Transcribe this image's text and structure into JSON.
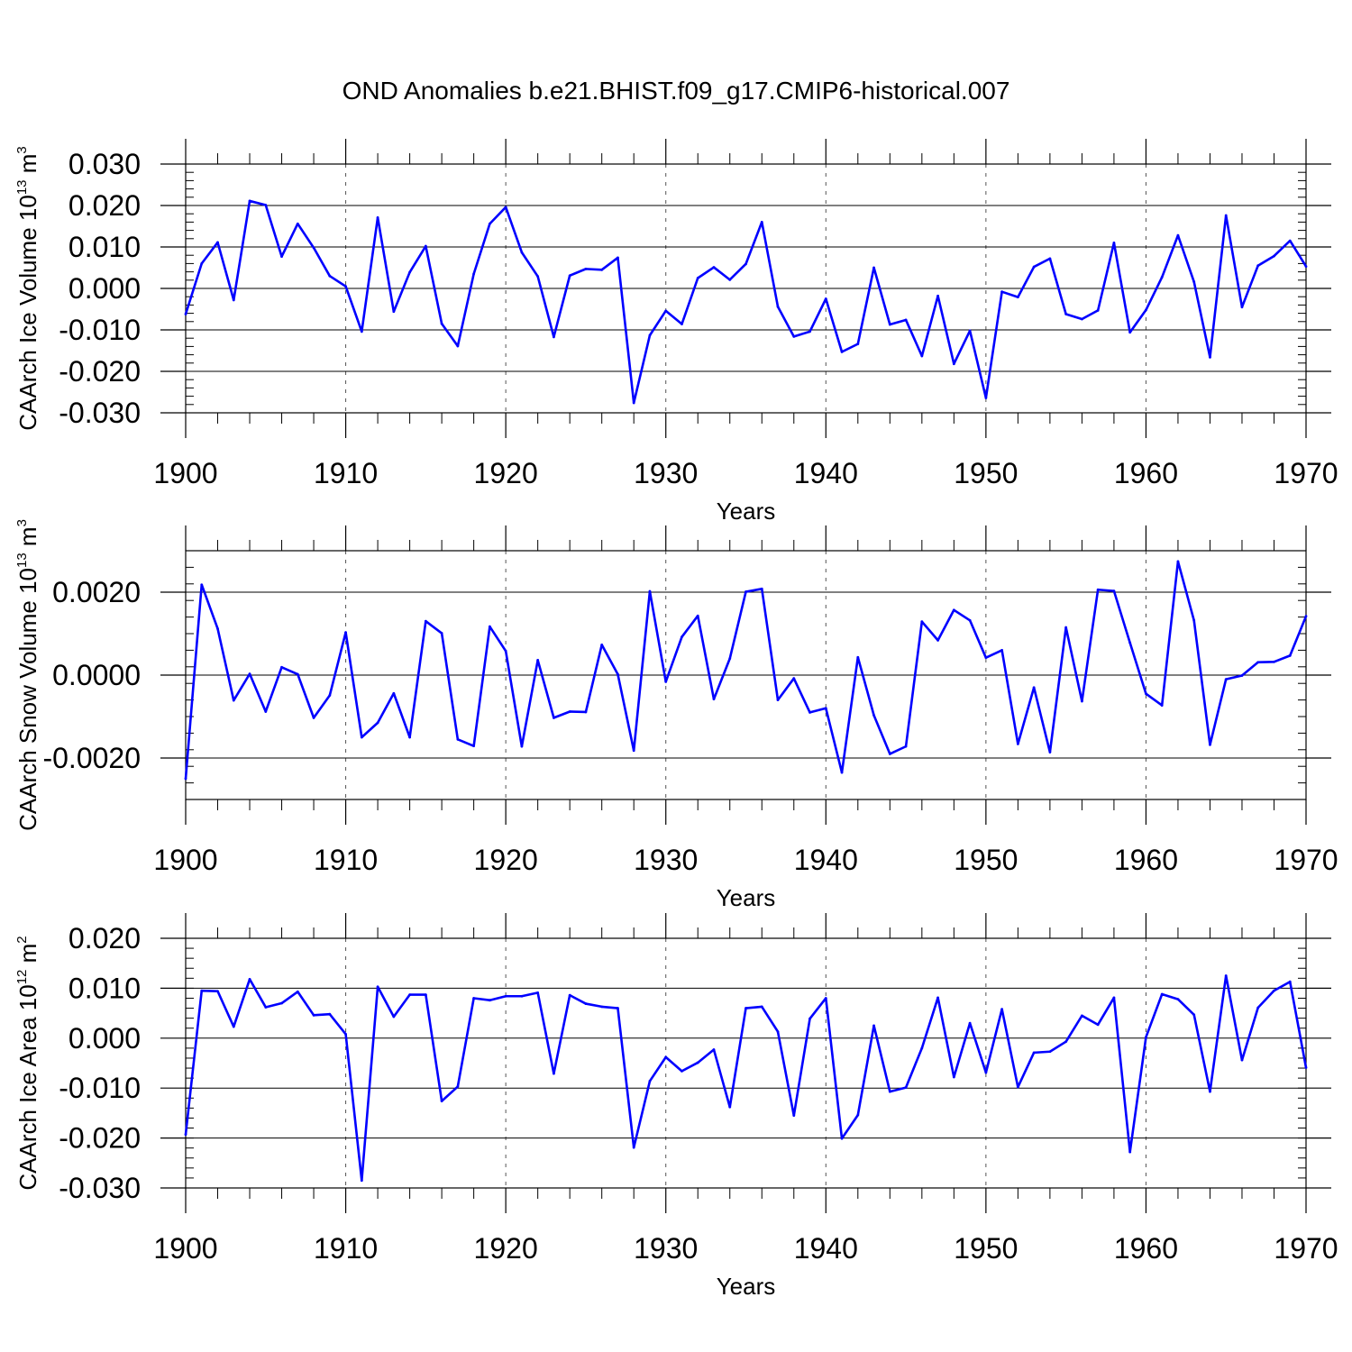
{
  "title": "OND Anomalies b.e21.BHIST.f09_g17.CMIP6-historical.007",
  "colors": {
    "series": "#0000ff",
    "axis": "#000000",
    "grid": "#555555"
  },
  "chart_data": [
    {
      "type": "line",
      "ylabel_main": "CAArch Ice Volume 10",
      "ylabel_exp": "13",
      "ylabel_unit": " m",
      "ylabel_unit_exp": "3",
      "xlabel": "Years",
      "xlim": [
        1900,
        1970
      ],
      "ylim": [
        -0.03,
        0.03
      ],
      "yticks": [
        -0.03,
        -0.02,
        -0.01,
        0.0,
        0.01,
        0.02,
        0.03
      ],
      "ytick_labels": [
        "-0.030",
        "-0.020",
        "-0.010",
        "0.000",
        "0.010",
        "0.020",
        "0.030"
      ],
      "xticks": [
        1900,
        1910,
        1920,
        1930,
        1940,
        1950,
        1960,
        1970
      ],
      "xtick_labels": [
        "1900",
        "1910",
        "1920",
        "1930",
        "1940",
        "1950",
        "1960",
        "1970"
      ],
      "x_start": 1900,
      "values": [
        -0.0062,
        0.006,
        0.0111,
        -0.0028,
        0.0211,
        0.0201,
        0.0077,
        0.0156,
        0.0098,
        0.003,
        0.0005,
        -0.0104,
        0.0171,
        -0.0056,
        0.0039,
        0.0102,
        -0.0085,
        -0.0139,
        0.0035,
        0.0156,
        0.0196,
        0.0087,
        0.0029,
        -0.0117,
        0.0031,
        0.0047,
        0.0045,
        0.0074,
        -0.0276,
        -0.0113,
        -0.0054,
        -0.0086,
        0.0025,
        0.0051,
        0.0021,
        0.0059,
        0.016,
        -0.0044,
        -0.0116,
        -0.0104,
        -0.0025,
        -0.0153,
        -0.0134,
        0.005,
        -0.0087,
        -0.0076,
        -0.0163,
        -0.0018,
        -0.0182,
        -0.0102,
        -0.0264,
        -0.0008,
        -0.0021,
        0.0052,
        0.0072,
        -0.0062,
        -0.0074,
        -0.0053,
        0.011,
        -0.0106,
        -0.0052,
        0.0027,
        0.0128,
        0.0016,
        -0.0166,
        0.0176,
        -0.0045,
        0.0055,
        0.0078,
        0.0115,
        0.0053
      ]
    },
    {
      "type": "line",
      "ylabel_main": "CAArch Snow Volume 10",
      "ylabel_exp": "13",
      "ylabel_unit": " m",
      "ylabel_unit_exp": "3",
      "xlabel": "Years",
      "xlim": [
        1900,
        1970
      ],
      "ylim": [
        -0.003,
        0.003
      ],
      "yticks": [
        -0.002,
        0.0,
        0.002
      ],
      "ytick_labels": [
        "-0.0020",
        "0.0000",
        "0.0020"
      ],
      "xticks": [
        1900,
        1910,
        1920,
        1930,
        1940,
        1950,
        1960,
        1970
      ],
      "xtick_labels": [
        "1900",
        "1910",
        "1920",
        "1930",
        "1940",
        "1950",
        "1960",
        "1970"
      ],
      "x_start": 1900,
      "values": [
        -0.0025,
        0.00218,
        0.00112,
        -0.00061,
        3e-05,
        -0.00088,
        0.00019,
        2e-05,
        -0.00103,
        -0.00049,
        0.00103,
        -0.0015,
        -0.00115,
        -0.00044,
        -0.0015,
        0.0013,
        0.00101,
        -0.00155,
        -0.00171,
        0.00117,
        0.00058,
        -0.00172,
        0.00036,
        -0.00103,
        -0.00088,
        -0.00089,
        0.00073,
        2e-05,
        -0.00182,
        0.00202,
        -0.00016,
        0.00092,
        0.00143,
        -0.00058,
        0.0004,
        0.00201,
        0.00208,
        -0.0006,
        -8e-05,
        -0.0009,
        -0.0008,
        -0.00235,
        0.00043,
        -0.00097,
        -0.0019,
        -0.00172,
        0.00129,
        0.00084,
        0.00157,
        0.00132,
        0.00042,
        0.0006,
        -0.00166,
        -0.0003,
        -0.00186,
        0.00115,
        -0.00063,
        0.00206,
        0.00203,
        0.00078,
        -0.00045,
        -0.00073,
        0.00274,
        0.00132,
        -0.00168,
        -0.0001,
        -1e-05,
        0.00031,
        0.00032,
        0.00047,
        0.00142
      ]
    },
    {
      "type": "line",
      "ylabel_main": "CAArch Ice Area 10",
      "ylabel_exp": "12",
      "ylabel_unit": " m",
      "ylabel_unit_exp": "2",
      "xlabel": "Years",
      "xlim": [
        1900,
        1970
      ],
      "ylim": [
        -0.03,
        0.02
      ],
      "yticks": [
        -0.03,
        -0.02,
        -0.01,
        0.0,
        0.01,
        0.02
      ],
      "ytick_labels": [
        "-0.030",
        "-0.020",
        "-0.010",
        "0.000",
        "0.010",
        "0.020"
      ],
      "xticks": [
        1900,
        1910,
        1920,
        1930,
        1940,
        1950,
        1960,
        1970
      ],
      "xtick_labels": [
        "1900",
        "1910",
        "1920",
        "1930",
        "1940",
        "1950",
        "1960",
        "1970"
      ],
      "x_start": 1900,
      "values": [
        -0.0193,
        0.0095,
        0.0094,
        0.0023,
        0.0118,
        0.0062,
        0.007,
        0.0093,
        0.0046,
        0.0048,
        0.0008,
        -0.0285,
        0.0103,
        0.0043,
        0.0087,
        0.0087,
        -0.0126,
        -0.0097,
        0.008,
        0.0076,
        0.0084,
        0.0084,
        0.0091,
        -0.0071,
        0.0086,
        0.0069,
        0.0063,
        0.006,
        -0.0219,
        -0.0086,
        -0.0038,
        -0.0066,
        -0.0049,
        -0.0023,
        -0.0138,
        0.006,
        0.0063,
        0.0013,
        -0.0155,
        0.0039,
        0.008,
        -0.0201,
        -0.0154,
        0.0025,
        -0.0107,
        -0.0099,
        -0.002,
        0.0081,
        -0.0078,
        0.003,
        -0.0069,
        0.0058,
        -0.0098,
        -0.0029,
        -0.0027,
        -0.0007,
        0.0045,
        0.0027,
        0.0081,
        -0.0228,
        0.0002,
        0.0088,
        0.0078,
        0.0047,
        -0.0107,
        0.0125,
        -0.0044,
        0.0061,
        0.0095,
        0.0113,
        -0.0059
      ]
    }
  ]
}
